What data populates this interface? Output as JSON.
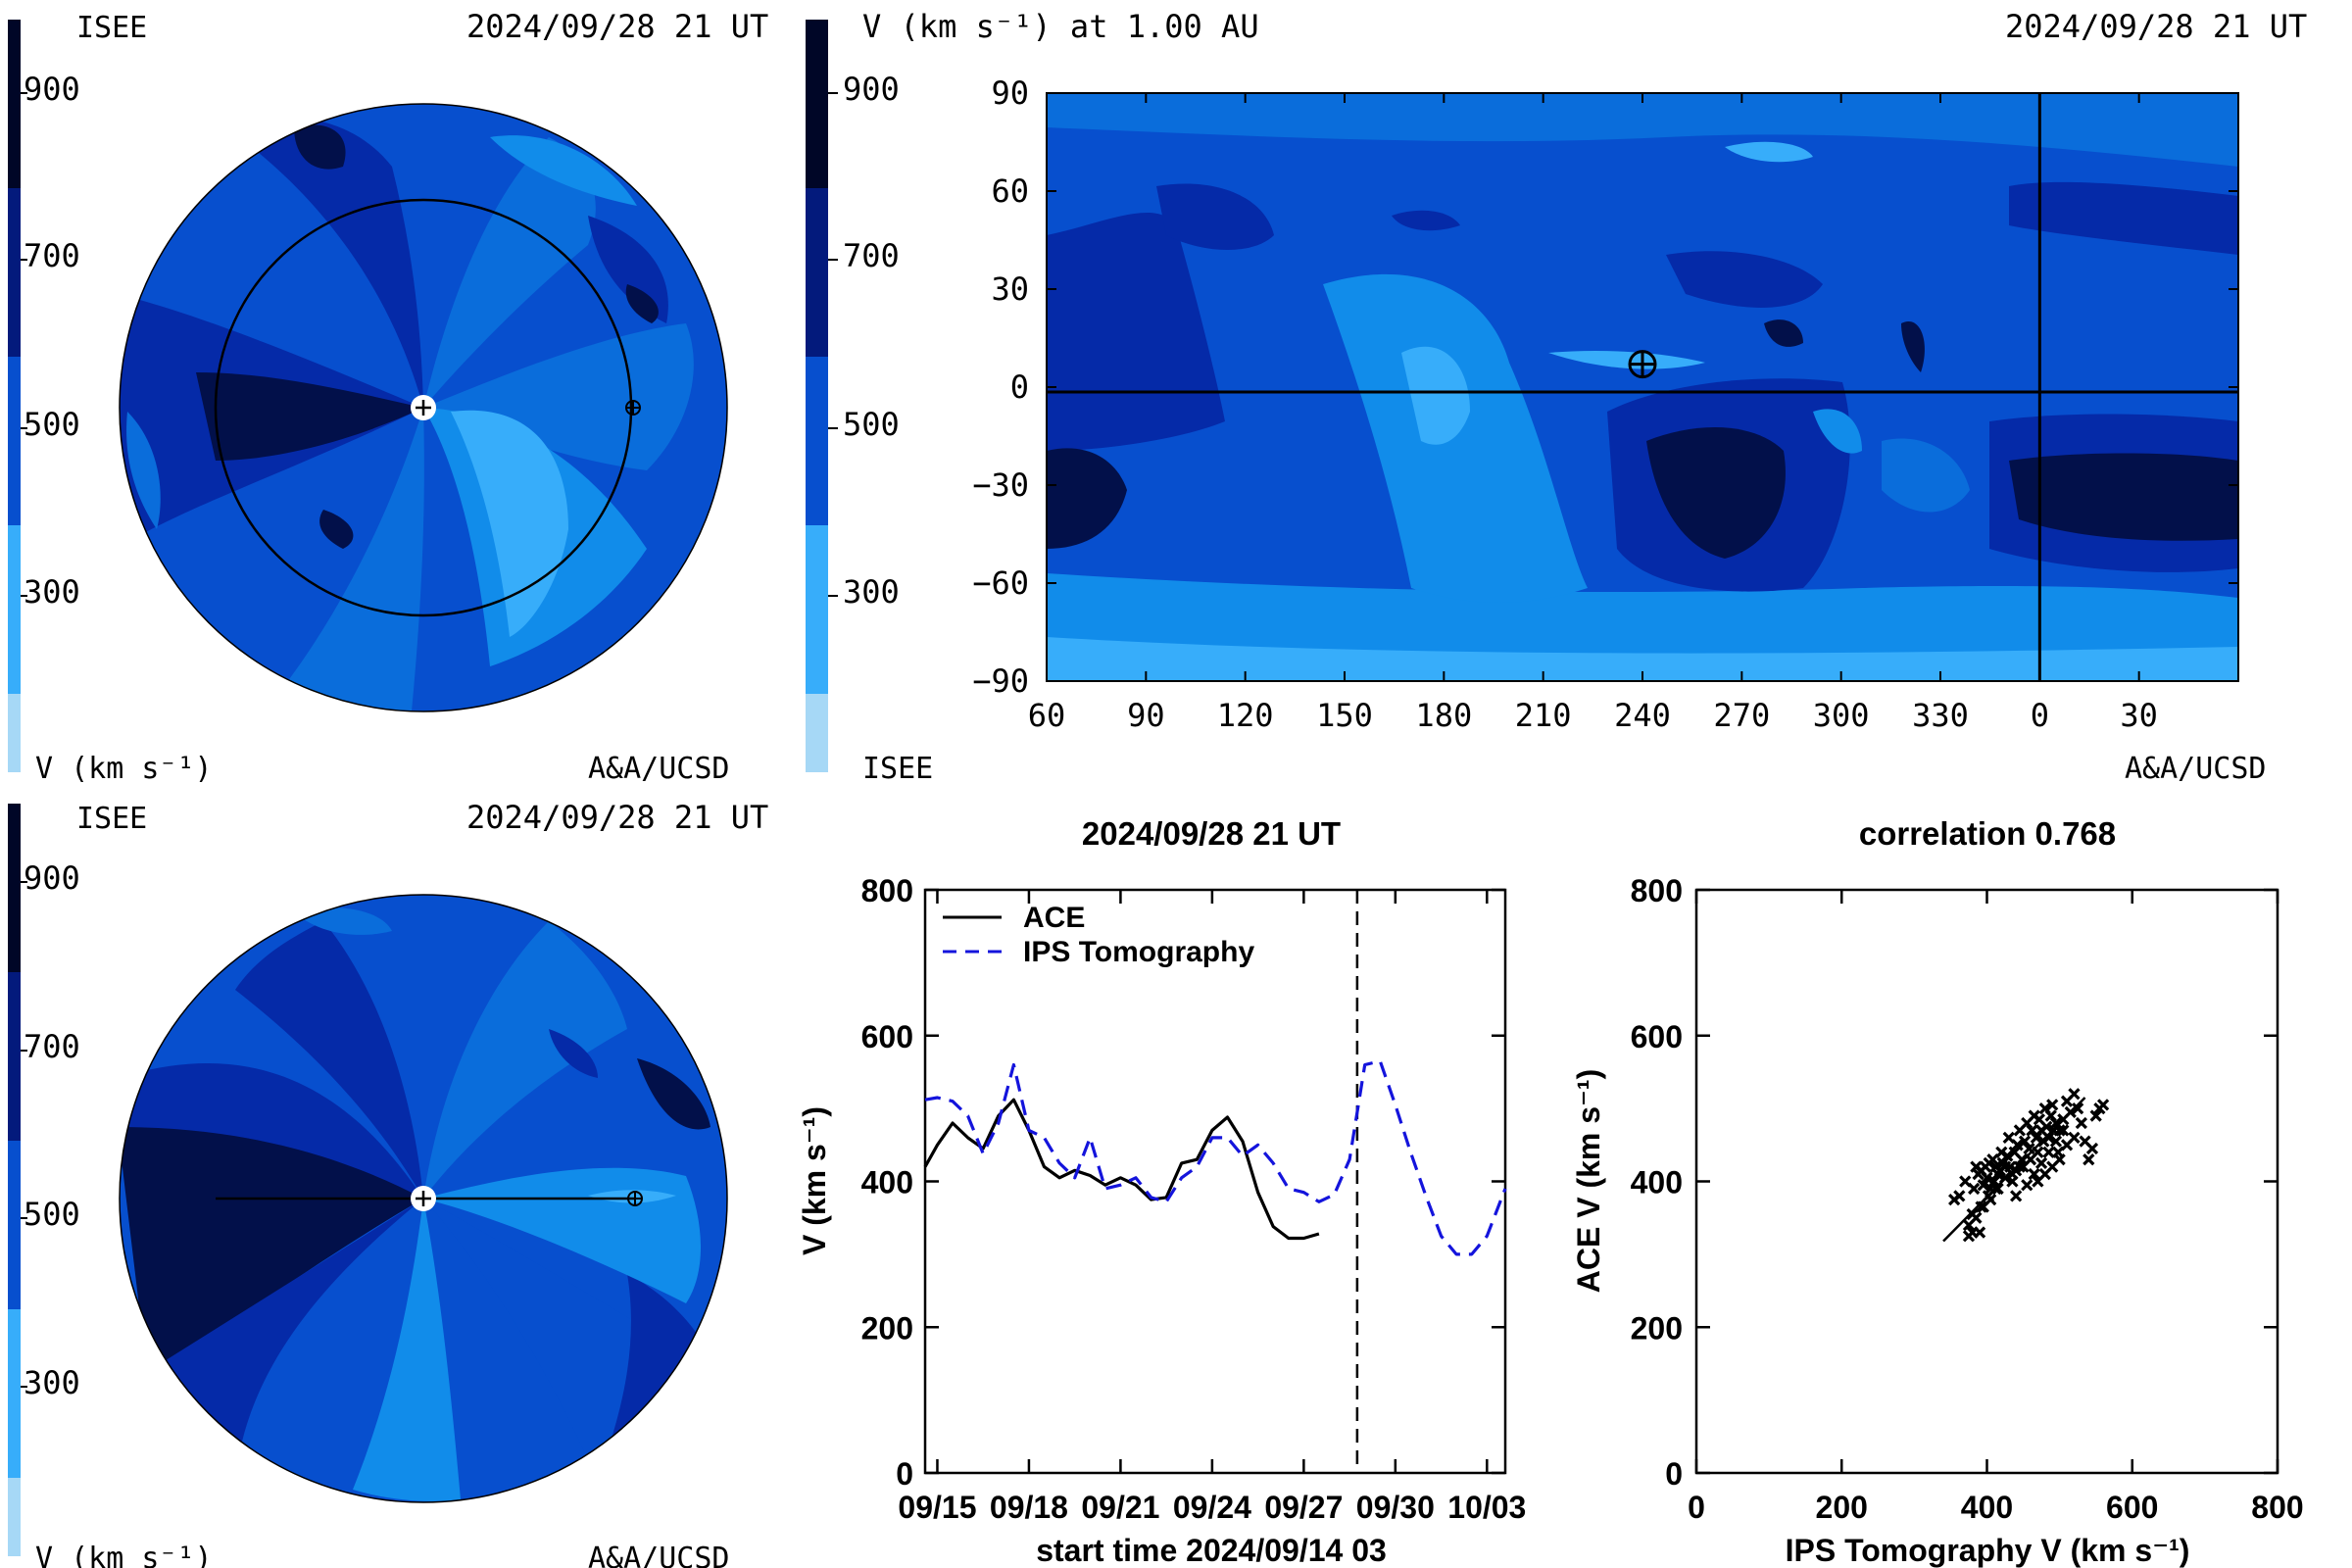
{
  "colors": {
    "c0": "#a6d8f6",
    "c1": "#37adfa",
    "c2": "#118cea",
    "c3": "#0a6ddb",
    "c4": "#074fce",
    "c5": "#052aa8",
    "c6": "#031a7c",
    "c7": "#02104a",
    "c8": "#000627",
    "ips_line": "#1414dc",
    "ace_line": "#000000"
  },
  "colorbar": {
    "ticks": [
      "900",
      "700",
      "500",
      "300"
    ],
    "label": "V (km s⁻¹)"
  },
  "panel_top_left": {
    "source": "ISEE",
    "timestamp": "2024/09/28 21 UT",
    "credit": "A&A/UCSD",
    "label": "V (km s⁻¹)"
  },
  "panel_top_right": {
    "title": "V (km s⁻¹) at 1.00 AU",
    "timestamp": "2024/09/28 21 UT",
    "source": "ISEE",
    "credit": "A&A/UCSD",
    "earth_marker": {
      "lon": 240,
      "lat": 7
    },
    "current_longitude": 0
  },
  "panel_bottom_left": {
    "source": "ISEE",
    "timestamp": "2024/09/28 21 UT",
    "credit": "A&A/UCSD",
    "label": "V (km s⁻¹)"
  },
  "chart_data": [
    {
      "type": "line",
      "title": "2024/09/28 21 UT",
      "xlabel": "start time 2024/09/14 03",
      "ylabel": "V (km s⁻¹)",
      "ylim": [
        0,
        800
      ],
      "yticks": [
        "0",
        "200",
        "400",
        "600",
        "800"
      ],
      "xticks": [
        "09/15",
        "09/18",
        "09/21",
        "09/24",
        "09/27",
        "09/30",
        "10/03"
      ],
      "xlim_days": [
        0.6,
        19.6
      ],
      "now_marker_day": 14.75,
      "legend": {
        "placement": "top-left"
      },
      "series": [
        {
          "name": "ACE",
          "x_days": [
            0.6,
            1.0,
            1.5,
            2.0,
            2.5,
            3.0,
            3.5,
            4.0,
            4.5,
            5.0,
            5.5,
            6.0,
            6.5,
            7.0,
            7.5,
            8.0,
            8.5,
            9.0,
            9.5,
            10.0,
            10.5,
            11.0,
            11.5,
            12.0,
            12.5,
            13.0,
            13.5,
            14.0,
            14.5,
            14.75
          ],
          "values": [
            420,
            450,
            480,
            460,
            445,
            490,
            512,
            470,
            420,
            405,
            415,
            408,
            395,
            405,
            395,
            375,
            378,
            425,
            430,
            470,
            488,
            455,
            385,
            338,
            322,
            322,
            328,
            null,
            null,
            null
          ]
        },
        {
          "name": "IPS Tomography",
          "x_days": [
            0.6,
            1.0,
            1.5,
            2.0,
            2.5,
            3.0,
            3.5,
            4.0,
            4.5,
            5.0,
            5.5,
            6.0,
            6.5,
            7.0,
            7.5,
            8.0,
            8.5,
            9.0,
            9.5,
            10.0,
            10.5,
            11.0,
            11.5,
            12.0,
            12.5,
            13.0,
            13.5,
            14.0,
            14.5,
            15.0,
            15.5,
            16.0,
            16.5,
            17.0,
            17.5,
            18.0,
            18.5,
            19.0,
            19.6
          ],
          "values": [
            512,
            515,
            510,
            490,
            438,
            480,
            560,
            470,
            460,
            425,
            405,
            460,
            390,
            395,
            405,
            378,
            372,
            405,
            420,
            460,
            460,
            435,
            450,
            425,
            390,
            385,
            372,
            382,
            430,
            560,
            565,
            505,
            440,
            380,
            325,
            300,
            300,
            325,
            390
          ]
        }
      ]
    },
    {
      "type": "scatter",
      "title": "correlation 0.768",
      "xlabel": "IPS Tomography V (km s⁻¹)",
      "ylabel": "ACE V (km s⁻¹)",
      "xlim": [
        0,
        800
      ],
      "ylim": [
        0,
        800
      ],
      "xticks": [
        "0",
        "200",
        "400",
        "600",
        "800"
      ],
      "yticks": [
        "0",
        "200",
        "400",
        "600",
        "800"
      ],
      "fit_line": {
        "x": [
          340,
          535
        ],
        "y": [
          318,
          515
        ]
      },
      "points": {
        "x": [
          355,
          362,
          370,
          375,
          380,
          382,
          385,
          388,
          390,
          392,
          395,
          398,
          400,
          403,
          405,
          408,
          410,
          412,
          415,
          418,
          420,
          422,
          425,
          428,
          430,
          432,
          435,
          438,
          440,
          442,
          445,
          448,
          450,
          452,
          455,
          458,
          460,
          462,
          465,
          468,
          470,
          472,
          475,
          478,
          480,
          482,
          485,
          488,
          490,
          492,
          495,
          498,
          500,
          505,
          510,
          515,
          520,
          525,
          530,
          535,
          540,
          545,
          550,
          555,
          560,
          380,
          392,
          402,
          412,
          425,
          435,
          445,
          470,
          480,
          490,
          500,
          510,
          520,
          440,
          455,
          465,
          475,
          485,
          495,
          505,
          375,
          385,
          395,
          405,
          415
        ],
        "y": [
          375,
          380,
          400,
          325,
          330,
          390,
          420,
          410,
          330,
          415,
          395,
          420,
          405,
          425,
          390,
          430,
          400,
          420,
          410,
          415,
          440,
          425,
          420,
          435,
          460,
          420,
          400,
          440,
          415,
          450,
          470,
          430,
          420,
          455,
          480,
          445,
          430,
          470,
          490,
          460,
          440,
          485,
          470,
          455,
          500,
          475,
          460,
          490,
          505,
          470,
          480,
          440,
          470,
          485,
          510,
          495,
          520,
          500,
          480,
          455,
          430,
          445,
          490,
          500,
          505,
          355,
          365,
          380,
          390,
          405,
          410,
          420,
          400,
          410,
          420,
          430,
          450,
          460,
          380,
          395,
          410,
          425,
          440,
          455,
          470,
          340,
          350,
          365,
          375,
          390
        ]
      }
    }
  ]
}
